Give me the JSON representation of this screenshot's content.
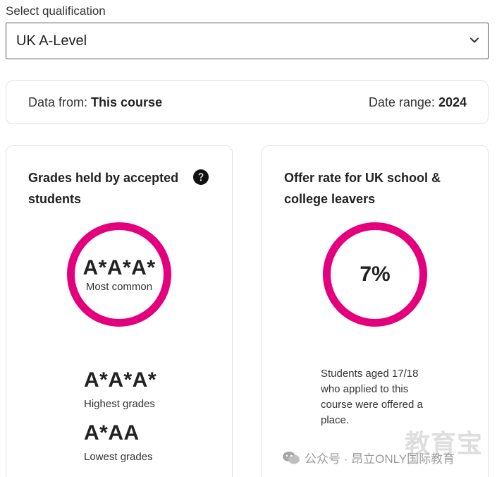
{
  "qualification": {
    "label": "Select qualification",
    "selected": "UK A-Level"
  },
  "info": {
    "data_from_label": "Data from:",
    "data_from_value": "This course",
    "date_range_label": "Date range:",
    "date_range_value": "2024"
  },
  "grades_card": {
    "title": "Grades held by accepted students",
    "most_common_value": "A*A*A*",
    "most_common_label": "Most common",
    "highest_value": "A*A*A*",
    "highest_label": "Highest grades",
    "lowest_value": "A*AA",
    "lowest_label": "Lowest grades",
    "ring_color": "#e4007c"
  },
  "offer_card": {
    "title": "Offer rate for UK school & college leavers",
    "rate": "7%",
    "description": "Students aged 17/18 who applied to this course were offered a place.",
    "ring_color": "#e4007c"
  },
  "watermark": {
    "text": "公众号 · 昂立ONLY国际教育",
    "big_text": "教育宝"
  }
}
